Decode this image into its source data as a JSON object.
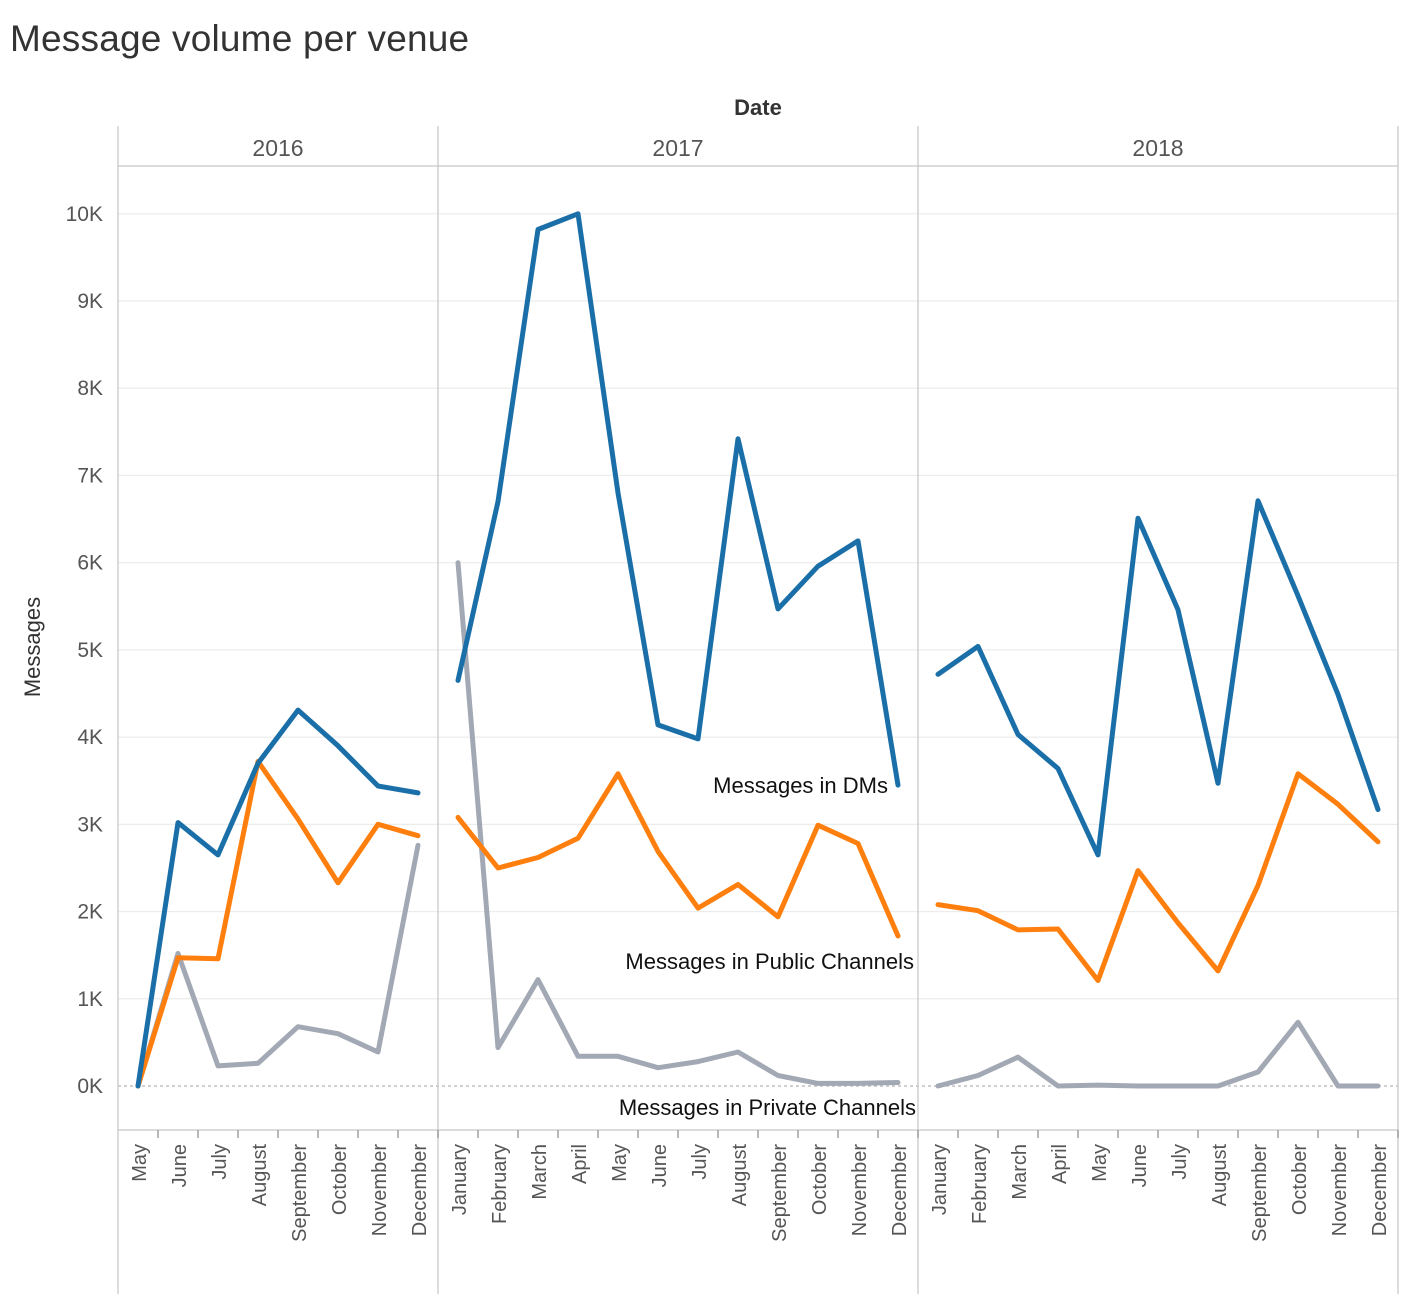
{
  "chart_data": {
    "type": "line",
    "title": "Message volume per venue",
    "xlabel": "Date",
    "ylabel": "Messages",
    "ylim": [
      -500,
      10500
    ],
    "y_ticks": [
      0,
      1000,
      2000,
      3000,
      4000,
      5000,
      6000,
      7000,
      8000,
      9000,
      10000
    ],
    "y_tick_labels": [
      "0K",
      "1K",
      "2K",
      "3K",
      "4K",
      "5K",
      "6K",
      "7K",
      "8K",
      "9K",
      "10K"
    ],
    "grid": true,
    "panels": [
      {
        "year": "2016",
        "months": [
          "May",
          "June",
          "July",
          "August",
          "September",
          "October",
          "November",
          "December"
        ]
      },
      {
        "year": "2017",
        "months": [
          "January",
          "February",
          "March",
          "April",
          "May",
          "June",
          "July",
          "August",
          "September",
          "October",
          "November",
          "December"
        ]
      },
      {
        "year": "2018",
        "months": [
          "January",
          "February",
          "March",
          "April",
          "May",
          "June",
          "July",
          "August",
          "September",
          "October",
          "November",
          "December"
        ]
      }
    ],
    "series": [
      {
        "name": "Messages in DMs",
        "color": "#1b6fa8",
        "values": [
          [
            0,
            3020,
            2650,
            3700,
            4310,
            3900,
            3440,
            3360
          ],
          [
            4650,
            6700,
            9820,
            10000,
            6800,
            4140,
            3980,
            7420,
            5470,
            5960,
            6250,
            3450
          ],
          [
            4720,
            5040,
            4030,
            3640,
            2650,
            6510,
            5460,
            3470,
            6710,
            5620,
            4490,
            3170
          ]
        ]
      },
      {
        "name": "Messages in Public Channels",
        "color": "#ff7f0e",
        "values": [
          [
            0,
            1470,
            1460,
            3720,
            3060,
            2330,
            3000,
            2870
          ],
          [
            3080,
            2500,
            2620,
            2840,
            3580,
            2690,
            2040,
            2310,
            1940,
            2990,
            2780,
            1720
          ],
          [
            2080,
            2010,
            1790,
            1800,
            1210,
            2470,
            1870,
            1320,
            2300,
            3580,
            3230,
            2800
          ]
        ]
      },
      {
        "name": "Messages in Private Channels",
        "color": "#a2a9b4",
        "values": [
          [
            0,
            1520,
            230,
            260,
            680,
            600,
            390,
            2760
          ],
          [
            6000,
            440,
            1220,
            340,
            340,
            210,
            280,
            390,
            120,
            30,
            30,
            40
          ],
          [
            0,
            120,
            330,
            0,
            10,
            0,
            0,
            0,
            160,
            730,
            0,
            0
          ]
        ]
      }
    ]
  }
}
